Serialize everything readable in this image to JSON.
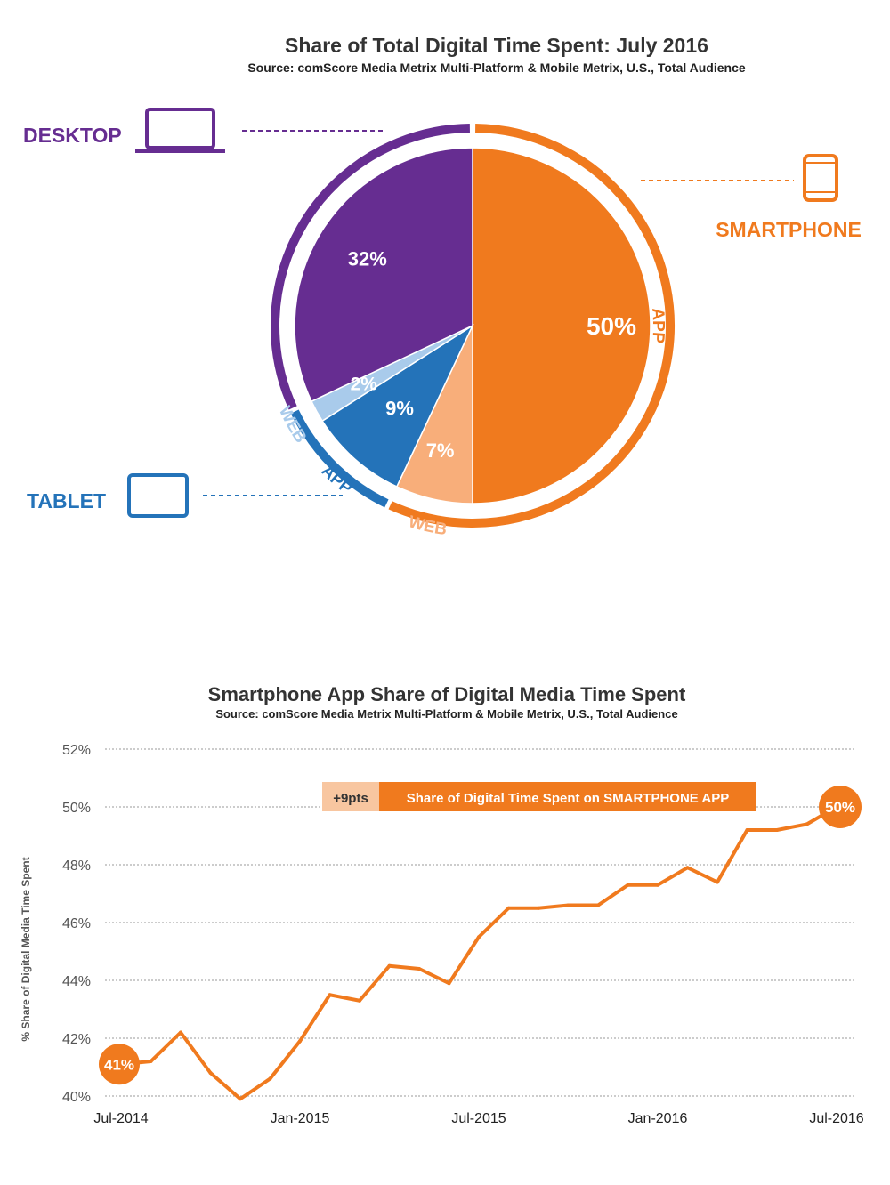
{
  "colors": {
    "desktop": "#662d91",
    "tablet_web": "#a9cbeb",
    "tablet_app": "#2473b9",
    "smartphone_web": "#f8ae7a",
    "smartphone_app": "#f07a1e",
    "grid": "#999999",
    "text": "#333333"
  },
  "chart_data": [
    {
      "type": "pie",
      "title": "Share of Total Digital Time Spent: July 2016",
      "subtitle": "Source: comScore Media Metrix Multi-Platform & Mobile Metrix, U.S., Total Audience",
      "slices": [
        {
          "label": "50%",
          "value": 50,
          "platform": "SMARTPHONE",
          "ring_label": "APP",
          "color": "#f07a1e"
        },
        {
          "label": "7%",
          "value": 7,
          "platform": "SMARTPHONE",
          "ring_label": "WEB",
          "color": "#f8ae7a"
        },
        {
          "label": "9%",
          "value": 9,
          "platform": "TABLET",
          "ring_label": "APP",
          "color": "#2473b9"
        },
        {
          "label": "2%",
          "value": 2,
          "platform": "TABLET",
          "ring_label": "WEB",
          "color": "#a9cbeb"
        },
        {
          "label": "32%",
          "value": 32,
          "platform": "DESKTOP",
          "ring_label": "",
          "color": "#662d91"
        }
      ],
      "callouts": {
        "desktop": "DESKTOP",
        "smartphone": "SMARTPHONE",
        "tablet": "TABLET"
      },
      "icons": {
        "desktop": "laptop-icon",
        "smartphone": "smartphone-icon",
        "tablet": "tablet-icon"
      }
    },
    {
      "type": "line",
      "title": "Smartphone App Share of Digital Media Time Spent",
      "subtitle": "Source: comScore Media Metrix Multi-Platform & Mobile Metrix, U.S., Total Audience",
      "ylabel": "% Share of Digital Media Time Spent",
      "xlabel": "",
      "ylim": [
        40,
        52
      ],
      "yticks": [
        40,
        42,
        44,
        46,
        48,
        50,
        52
      ],
      "ytick_labels": [
        "40%",
        "42%",
        "44%",
        "46%",
        "48%",
        "50%",
        "52%"
      ],
      "x": [
        "Jul-2014",
        "Aug-2014",
        "Sep-2014",
        "Oct-2014",
        "Nov-2014",
        "Dec-2014",
        "Jan-2015",
        "Feb-2015",
        "Mar-2015",
        "Apr-2015",
        "May-2015",
        "Jun-2015",
        "Jul-2015",
        "Aug-2015",
        "Sep-2015",
        "Oct-2015",
        "Nov-2015",
        "Dec-2015",
        "Jan-2016",
        "Feb-2016",
        "Mar-2016",
        "Apr-2016",
        "May-2016",
        "Jun-2016",
        "Jul-2016"
      ],
      "xtick_labels": [
        "Jul-2014",
        "Jan-2015",
        "Jul-2015",
        "Jan-2016",
        "Jul-2016"
      ],
      "xtick_index": [
        0,
        6,
        12,
        18,
        24
      ],
      "grid": true,
      "series": [
        {
          "name": "Share of Digital Time Spent on SMARTPHONE APP",
          "color": "#f07a1e",
          "values": [
            41.1,
            41.2,
            42.2,
            40.8,
            39.9,
            40.6,
            41.9,
            43.5,
            43.3,
            44.5,
            44.4,
            43.9,
            45.5,
            46.5,
            46.5,
            46.6,
            46.6,
            47.3,
            47.3,
            47.9,
            47.4,
            49.2,
            49.2,
            49.4,
            50.0
          ]
        }
      ],
      "annotations": {
        "start_label": "41%",
        "end_label": "50%",
        "delta_label": "+9pts",
        "legend_label": "Share of Digital Time Spent on SMARTPHONE APP"
      }
    }
  ]
}
